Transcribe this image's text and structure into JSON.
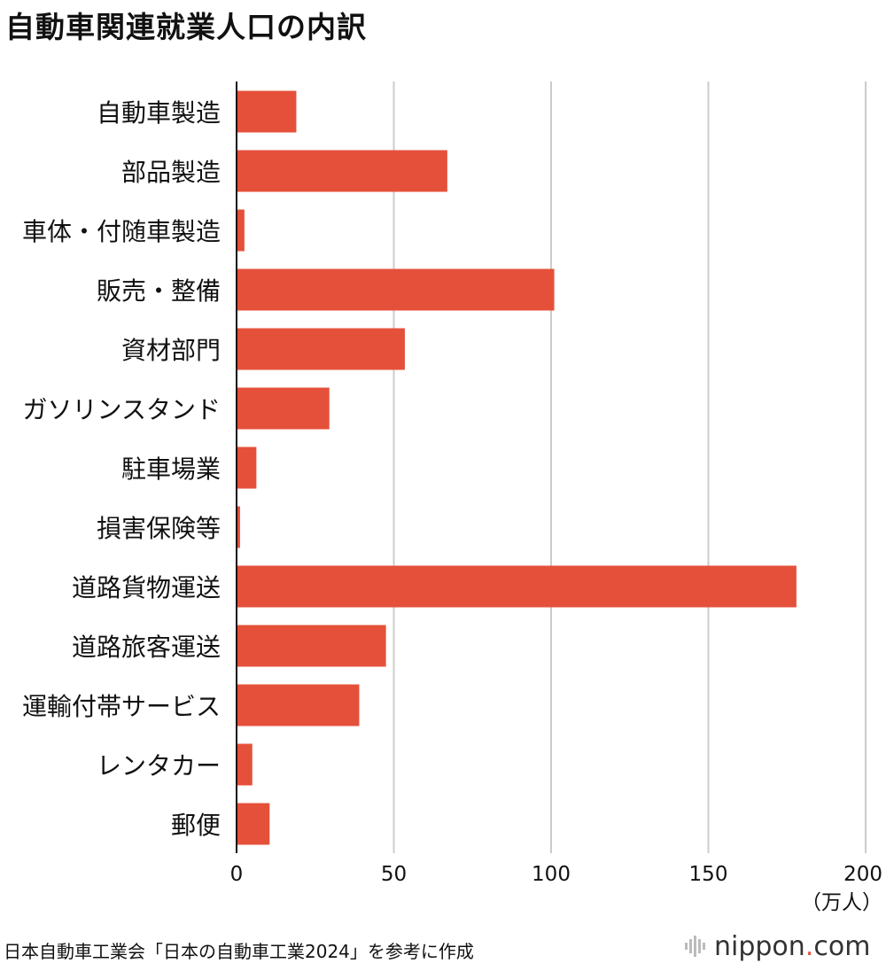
{
  "title": "自動車関連就業人口の内訳",
  "source": "日本自動車工業会「日本の自動車工業2024」を参考に作成",
  "brand": {
    "prefix": "nippon",
    "dot": ".",
    "suffix": "com"
  },
  "colors": {
    "bar": "#e5503a",
    "grid": "#cccccc",
    "axis": "#111111",
    "text": "#111111"
  },
  "chart_data": {
    "type": "bar",
    "orientation": "horizontal",
    "categories": [
      "自動車製造",
      "部品製造",
      "車体・付随車製造",
      "販売・整備",
      "資材部門",
      "ガソリンスタンド",
      "駐車場業",
      "損害保険等",
      "道路貨物運送",
      "道路旅客運送",
      "運輸付帯サービス",
      "レンタカー",
      "郵便"
    ],
    "values": [
      19,
      67,
      2.5,
      101,
      53.5,
      29.5,
      6.3,
      1.1,
      178,
      47.5,
      39,
      5,
      10.5
    ],
    "xlim": [
      0,
      200
    ],
    "xticks": [
      0,
      50,
      100,
      150,
      200
    ],
    "unit": "（万人）",
    "grid": true
  }
}
